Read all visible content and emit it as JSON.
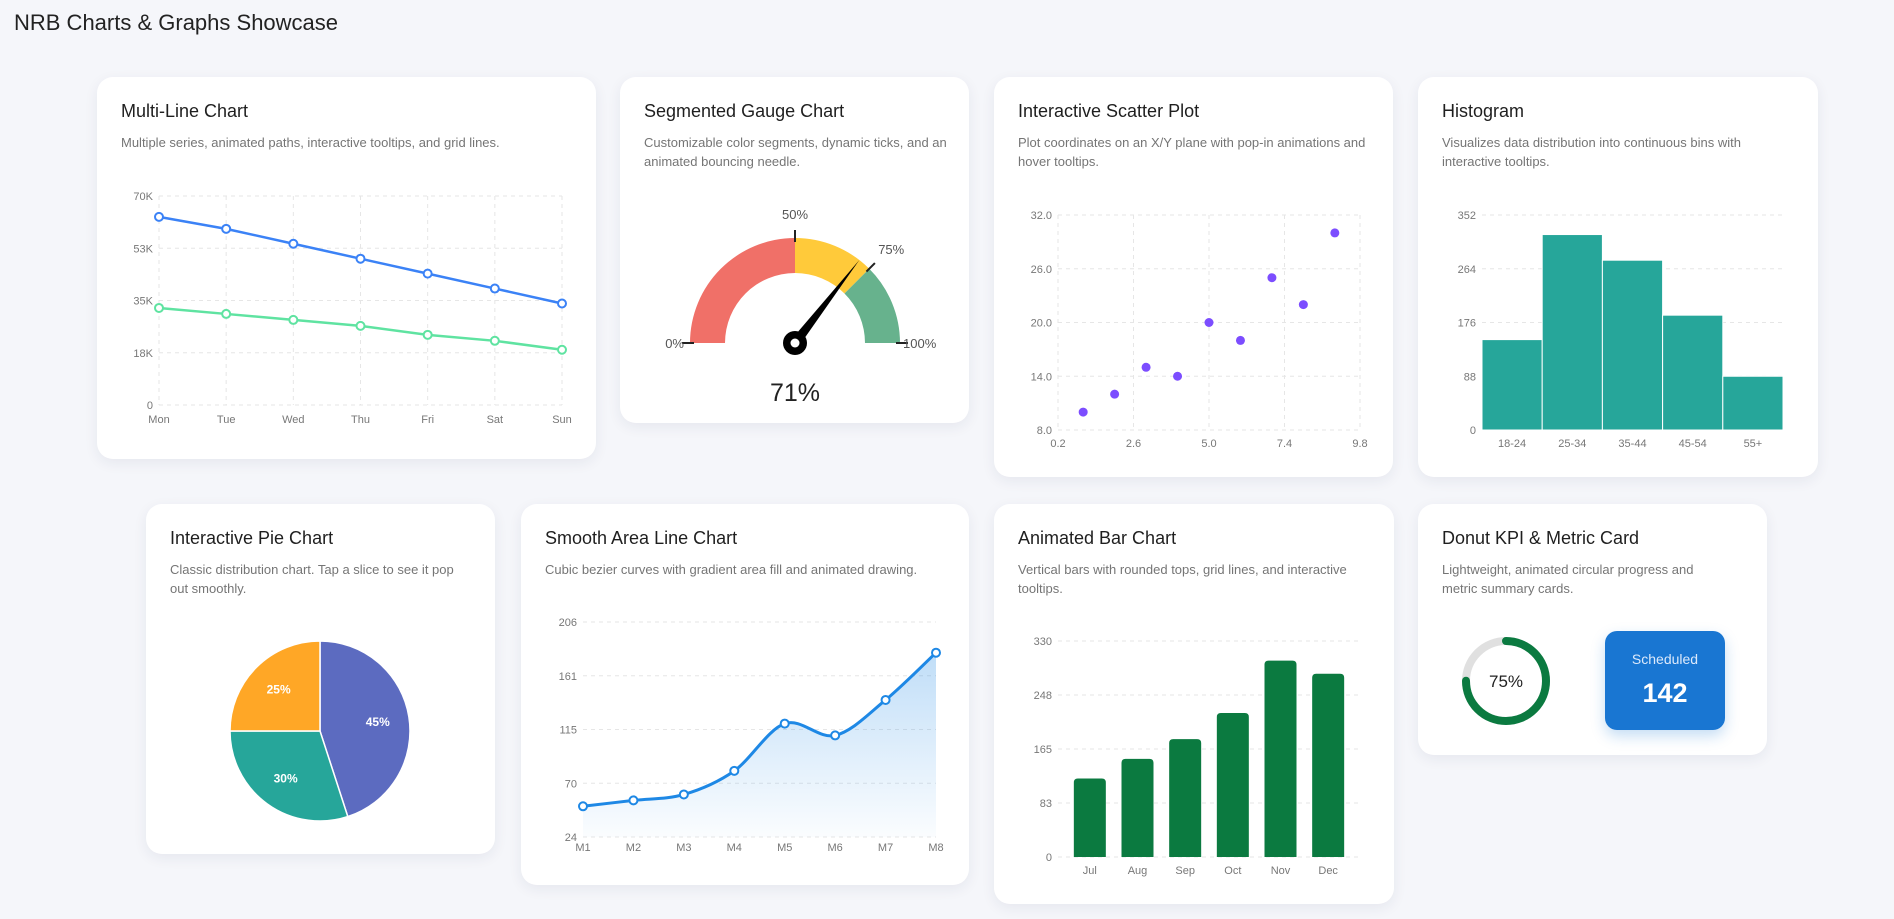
{
  "page": {
    "title": "NRB Charts & Graphs Showcase"
  },
  "cards": [
    {
      "title": "Multi-Line Chart",
      "description": "Multiple series, animated paths, interactive tooltips, and grid lines."
    },
    {
      "title": "Segmented Gauge Chart",
      "description": "Customizable color segments, dynamic ticks, and an animated bouncing needle."
    },
    {
      "title": "Interactive Scatter Plot",
      "description": "Plot coordinates on an X/Y plane with pop-in animations and hover tooltips."
    },
    {
      "title": "Histogram",
      "description": "Visualizes data distribution into continuous bins with interactive tooltips."
    },
    {
      "title": "Interactive Pie Chart",
      "description": "Classic distribution chart. Tap a slice to see it pop out smoothly."
    },
    {
      "title": "Smooth Area Line Chart",
      "description": "Cubic bezier curves with gradient area fill and animated drawing."
    },
    {
      "title": "Animated Bar Chart",
      "description": "Vertical bars with rounded tops, grid lines, and interactive tooltips."
    },
    {
      "title": "Donut KPI & Metric Card",
      "description": "Lightweight, animated circular progress and metric summary cards."
    }
  ],
  "chart_data": [
    {
      "type": "line",
      "categories": [
        "Mon",
        "Tue",
        "Wed",
        "Thu",
        "Fri",
        "Sat",
        "Sun"
      ],
      "series": [
        {
          "values": [
            63000,
            59000,
            54000,
            49000,
            44000,
            39000,
            34000
          ],
          "color": "#3b82f6"
        },
        {
          "values": [
            32500,
            30500,
            28500,
            26500,
            23500,
            21500,
            18500
          ],
          "color": "#5fe3a1"
        }
      ],
      "ylim": [
        0,
        70000
      ],
      "yticks": [
        "0",
        "18K",
        "35K",
        "53K",
        "70K"
      ],
      "grid": true
    },
    {
      "type": "gauge",
      "value": 71,
      "value_label": "71%",
      "range": [
        0,
        100
      ],
      "segments": [
        {
          "from": 0,
          "to": 50,
          "color": "#f07068"
        },
        {
          "from": 50,
          "to": 75,
          "color": "#ffca3a"
        },
        {
          "from": 75,
          "to": 100,
          "color": "#67b28d"
        }
      ],
      "ticks": [
        {
          "value": 0,
          "label": "0%"
        },
        {
          "value": 50,
          "label": "50%"
        },
        {
          "value": 75,
          "label": "75%"
        },
        {
          "value": 100,
          "label": "100%"
        }
      ]
    },
    {
      "type": "scatter",
      "points": [
        [
          1,
          10
        ],
        [
          2,
          12
        ],
        [
          3,
          15
        ],
        [
          4,
          14
        ],
        [
          5,
          20
        ],
        [
          6,
          18
        ],
        [
          7,
          25
        ],
        [
          8,
          22
        ],
        [
          9,
          30
        ]
      ],
      "xlim": [
        0.2,
        9.8
      ],
      "ylim": [
        8,
        32
      ],
      "xticks": [
        "0.2",
        "2.6",
        "5.0",
        "7.4",
        "9.8"
      ],
      "yticks": [
        "8.0",
        "14.0",
        "20.0",
        "26.0",
        "32.0"
      ],
      "color": "#7c4dff",
      "grid": true
    },
    {
      "type": "bar",
      "subtype": "histogram",
      "categories": [
        "18-24",
        "25-34",
        "35-44",
        "45-54",
        "55+"
      ],
      "values": [
        148,
        320,
        278,
        188,
        88
      ],
      "ylim": [
        0,
        352
      ],
      "yticks": [
        "0",
        "88",
        "176",
        "264",
        "352"
      ],
      "color": "#26a69a"
    },
    {
      "type": "pie",
      "slices": [
        {
          "label": "45%",
          "value": 45,
          "color": "#5c6bc0"
        },
        {
          "label": "30%",
          "value": 30,
          "color": "#26a69a"
        },
        {
          "label": "25%",
          "value": 25,
          "color": "#ffa726"
        }
      ]
    },
    {
      "type": "area",
      "categories": [
        "M1",
        "M2",
        "M3",
        "M4",
        "M5",
        "M6",
        "M7",
        "M8"
      ],
      "values": [
        50,
        55,
        60,
        80,
        120,
        110,
        140,
        180
      ],
      "ylim": [
        24,
        206
      ],
      "yticks": [
        "24",
        "70",
        "115",
        "161",
        "206"
      ],
      "color": "#1e88e5"
    },
    {
      "type": "bar",
      "categories": [
        "Jul",
        "Aug",
        "Sep",
        "Oct",
        "Nov",
        "Dec"
      ],
      "values": [
        120,
        150,
        180,
        220,
        300,
        280
      ],
      "ylim": [
        0,
        330
      ],
      "yticks": [
        "0",
        "83",
        "165",
        "248",
        "330"
      ],
      "color": "#0b7a40"
    },
    {
      "type": "donut",
      "value": 75,
      "value_label": "75%",
      "color": "#0b7a40",
      "track_color": "#e0e0e0",
      "metric": {
        "label": "Scheduled",
        "value": "142",
        "color": "#1976d2"
      }
    }
  ]
}
